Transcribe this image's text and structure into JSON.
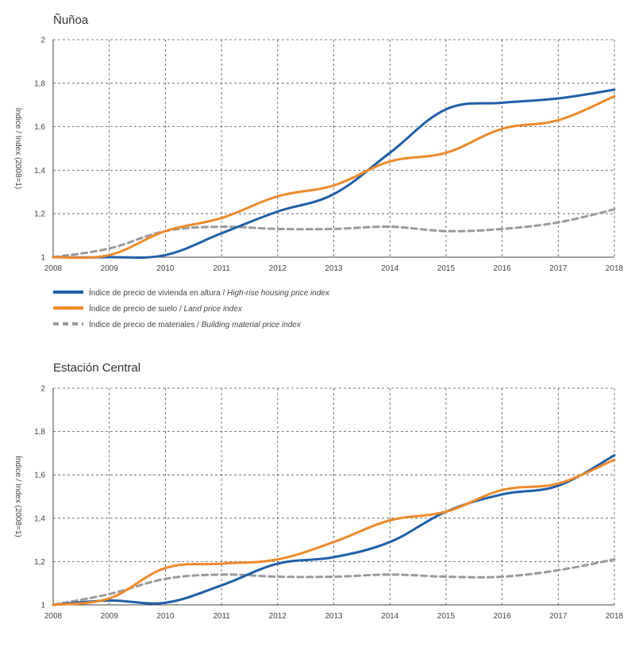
{
  "legend": {
    "items": [
      {
        "text": "Índice de precio de vivienda en altura / ",
        "italic": "High-rise housing price index",
        "color": "#1f5fa8",
        "style": "solid"
      },
      {
        "text": "Índice de precio de suelo / ",
        "italic": "Land price index",
        "color": "#ee8a2a",
        "style": "solid"
      },
      {
        "text": "Índice de precio de materiales / ",
        "italic": "Building material price index",
        "color": "#9a9a9a",
        "style": "dashed"
      }
    ]
  },
  "chart_data": [
    {
      "type": "line",
      "title": "Ñuñoa",
      "ylabel": "Índice / Index (2008=1)",
      "xlabel": "",
      "x": [
        2008,
        2009,
        2010,
        2011,
        2012,
        2013,
        2014,
        2015,
        2016,
        2017,
        2018
      ],
      "xlim": [
        2008,
        2018
      ],
      "ylim": [
        1,
        2
      ],
      "yticks": [
        "1",
        "1,2",
        "1,4",
        "1,6",
        "1,8",
        "2"
      ],
      "grid": true,
      "series": [
        {
          "key": "housing",
          "values": [
            1.0,
            1.0,
            1.01,
            1.11,
            1.21,
            1.29,
            1.48,
            1.68,
            1.71,
            1.73,
            1.77
          ]
        },
        {
          "key": "land",
          "values": [
            1.0,
            1.01,
            1.12,
            1.18,
            1.28,
            1.33,
            1.44,
            1.48,
            1.59,
            1.63,
            1.74
          ]
        },
        {
          "key": "materials",
          "values": [
            1.0,
            1.04,
            1.12,
            1.14,
            1.13,
            1.13,
            1.14,
            1.12,
            1.13,
            1.16,
            1.22
          ]
        }
      ]
    },
    {
      "type": "line",
      "title": "Estación Central",
      "ylabel": "Índice / Index (2008=1)",
      "xlabel": "",
      "x": [
        2008,
        2009,
        2010,
        2011,
        2012,
        2013,
        2014,
        2015,
        2016,
        2017,
        2018
      ],
      "xlim": [
        2008,
        2018
      ],
      "ylim": [
        1,
        2
      ],
      "yticks": [
        "1",
        "1,2",
        "1,4",
        "1,6",
        "1,8",
        "2"
      ],
      "grid": true,
      "series": [
        {
          "key": "housing",
          "values": [
            1.0,
            1.02,
            1.01,
            1.09,
            1.19,
            1.22,
            1.29,
            1.43,
            1.51,
            1.55,
            1.69
          ]
        },
        {
          "key": "land",
          "values": [
            1.0,
            1.03,
            1.17,
            1.19,
            1.21,
            1.29,
            1.39,
            1.43,
            1.53,
            1.56,
            1.67
          ]
        },
        {
          "key": "materials",
          "values": [
            1.0,
            1.05,
            1.12,
            1.14,
            1.13,
            1.13,
            1.14,
            1.13,
            1.13,
            1.16,
            1.21
          ]
        }
      ]
    }
  ]
}
